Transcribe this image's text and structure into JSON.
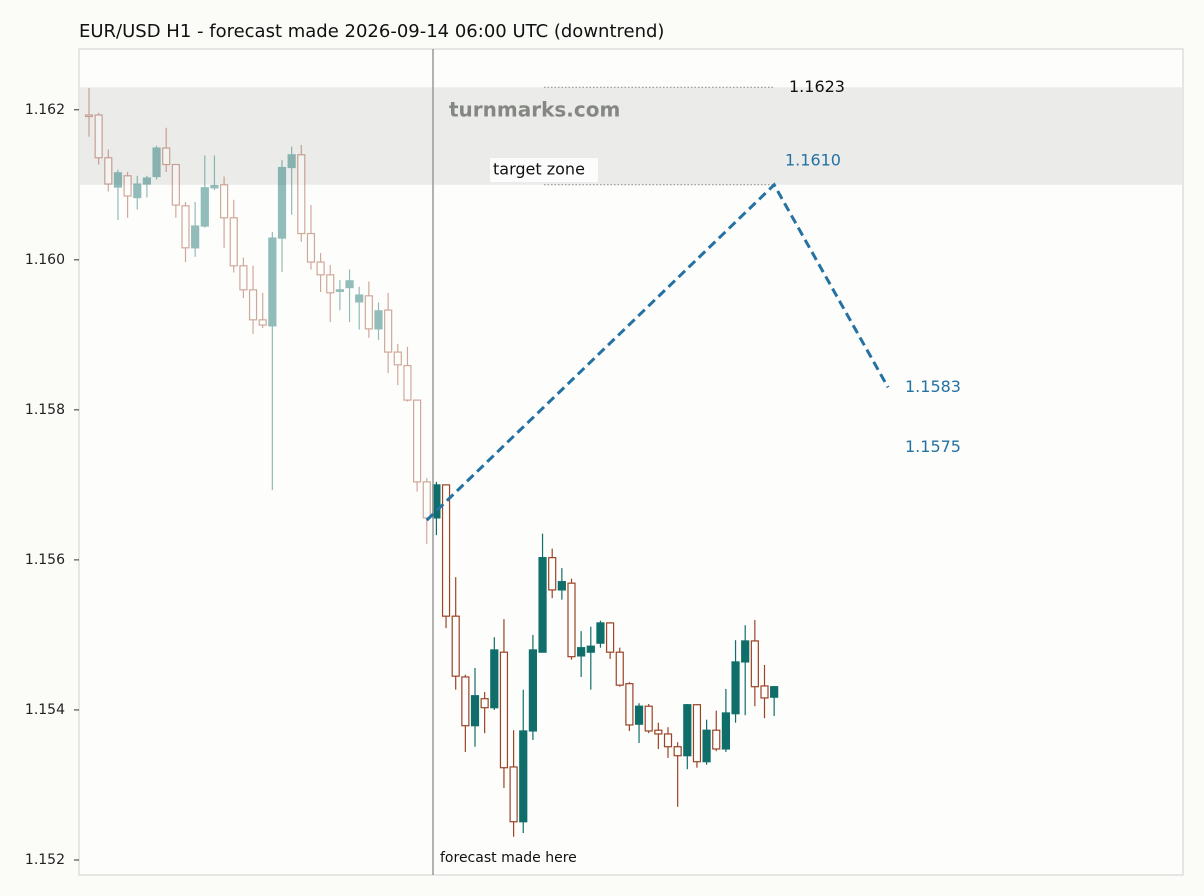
{
  "chart_data": {
    "type": "candlestick",
    "title": "EUR/USD H1 - forecast made 2026-09-14 06:00 UTC (downtrend)",
    "watermark": "turnmarks.com",
    "forecast_marker": "forecast made here",
    "up_color": "#106e6a",
    "down_color": "#9a4326",
    "forecast_color": "#2471a3",
    "ylim": [
      1.1518,
      1.16281
    ],
    "yticks": [
      1.152,
      1.154,
      1.156,
      1.158,
      {
        "value": 1.16,
        "label": "1.160"
      },
      1.162
    ],
    "history": {
      "open": [
        1.16193,
        1.16193,
        1.16136,
        1.16097,
        1.16112,
        1.16083,
        1.16101,
        1.16111,
        1.16149,
        1.16127,
        1.16072,
        1.16016,
        1.16045,
        1.16096,
        1.161,
        1.16056,
        1.15992,
        1.1596,
        1.1592,
        1.15912,
        1.16029,
        1.16123,
        1.1614,
        1.16035,
        1.15997,
        1.1598,
        1.15958,
        1.15963,
        1.15944,
        1.15952,
        1.15908,
        1.15933,
        1.15877,
        1.15859,
        1.15813,
        1.15704
      ],
      "high": [
        1.16229,
        1.16196,
        1.16147,
        1.1612,
        1.16117,
        1.16112,
        1.16112,
        1.16152,
        1.16176,
        1.16127,
        1.16077,
        1.16077,
        1.16139,
        1.16139,
        1.16111,
        1.1608,
        1.16003,
        1.15992,
        1.15956,
        1.16037,
        1.16133,
        1.16151,
        1.16153,
        1.16073,
        1.16009,
        1.15993,
        1.15973,
        1.15987,
        1.15964,
        1.15971,
        1.15943,
        1.15956,
        1.15888,
        1.15884,
        1.15813,
        1.15709
      ],
      "low": [
        1.16164,
        1.16127,
        1.16091,
        1.16053,
        1.16056,
        1.16067,
        1.16083,
        1.16107,
        1.16117,
        1.16056,
        1.15997,
        1.16004,
        1.16043,
        1.16093,
        1.16016,
        1.15983,
        1.15949,
        1.15901,
        1.15909,
        1.15693,
        1.15984,
        1.1606,
        1.16024,
        1.15987,
        1.15957,
        1.15917,
        1.15933,
        1.15917,
        1.15907,
        1.15896,
        1.15893,
        1.15849,
        1.15833,
        1.15811,
        1.15691,
        1.15621
      ],
      "close": [
        1.16192,
        1.16136,
        1.16101,
        1.16116,
        1.16085,
        1.16101,
        1.16109,
        1.16149,
        1.16127,
        1.16073,
        1.16016,
        1.16045,
        1.16096,
        1.16099,
        1.16056,
        1.15992,
        1.1596,
        1.1592,
        1.15913,
        1.16029,
        1.16123,
        1.1614,
        1.16035,
        1.15997,
        1.1598,
        1.15956,
        1.1596,
        1.15972,
        1.15953,
        1.15908,
        1.15932,
        1.15877,
        1.1586,
        1.15813,
        1.15704,
        1.15656
      ]
    },
    "actual": {
      "open": [
        1.15656,
        1.157,
        1.15525,
        1.15444,
        1.15379,
        1.15415,
        1.15403,
        1.15477,
        1.15324,
        1.15251,
        1.15372,
        1.15477,
        1.15603,
        1.1556,
        1.15569,
        1.15472,
        1.15477,
        1.15489,
        1.15516,
        1.15477,
        1.15435,
        1.15381,
        1.15405,
        1.15373,
        1.15368,
        1.15351,
        1.15339,
        1.15407,
        1.15331,
        1.15373,
        1.15348,
        1.15395,
        1.15464,
        1.15492,
        1.15432,
        1.15417
      ],
      "high": [
        1.15704,
        1.157,
        1.15577,
        1.15447,
        1.15456,
        1.15424,
        1.15497,
        1.15521,
        1.15373,
        1.15427,
        1.155,
        1.15635,
        1.15615,
        1.15589,
        1.15575,
        1.15505,
        1.15511,
        1.15519,
        1.15517,
        1.15483,
        1.15437,
        1.15409,
        1.15408,
        1.15383,
        1.15377,
        1.15357,
        1.15408,
        1.15408,
        1.15387,
        1.15399,
        1.15428,
        1.15493,
        1.15513,
        1.1552,
        1.1546,
        1.15432
      ],
      "low": [
        1.15633,
        1.15509,
        1.15427,
        1.15344,
        1.15351,
        1.15369,
        1.154,
        1.15296,
        1.15231,
        1.15236,
        1.1536,
        1.15477,
        1.15549,
        1.15547,
        1.15467,
        1.15444,
        1.15427,
        1.15483,
        1.15468,
        1.15431,
        1.15372,
        1.15356,
        1.15369,
        1.15348,
        1.15336,
        1.15271,
        1.15321,
        1.15323,
        1.15327,
        1.15345,
        1.15344,
        1.15383,
        1.15393,
        1.15405,
        1.15389,
        1.15392
      ],
      "close": [
        1.157,
        1.15525,
        1.15445,
        1.15379,
        1.15419,
        1.15403,
        1.1548,
        1.15323,
        1.15251,
        1.15372,
        1.1548,
        1.15603,
        1.1556,
        1.15571,
        1.15471,
        1.15483,
        1.15485,
        1.15516,
        1.15477,
        1.15433,
        1.1538,
        1.15405,
        1.15372,
        1.15368,
        1.15351,
        1.15339,
        1.15407,
        1.15331,
        1.15373,
        1.15348,
        1.15396,
        1.15464,
        1.15492,
        1.15431,
        1.15416,
        1.15431
      ]
    },
    "target_zone": {
      "low": 1.161,
      "high": 1.1623,
      "label": "target zone",
      "high_label": "1.1623"
    },
    "forecast": {
      "start": 1.15653,
      "peak": 1.161,
      "peak_label": "1.1610",
      "end": 1.1583,
      "end_label": "1.1583"
    },
    "alt_level": {
      "value": 1.1575,
      "label": "1.1575"
    }
  }
}
